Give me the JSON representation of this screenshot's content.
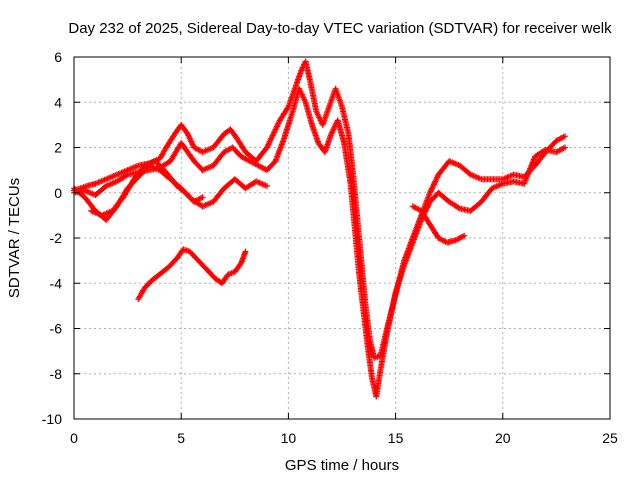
{
  "chart_data": {
    "type": "scatter",
    "title": "Day 232 of 2025, Sidereal Day-to-day VTEC variation (SDTVAR) for receiver welk",
    "xlabel": "GPS time / hours",
    "ylabel": "SDTVAR / TECUs",
    "xlim": [
      0,
      25
    ],
    "ylim": [
      -10,
      6
    ],
    "xticks": [
      "0",
      "5",
      "10",
      "15",
      "20",
      "25"
    ],
    "yticks": [
      "6",
      "4",
      "2",
      "0",
      "-2",
      "-4",
      "-6",
      "-8",
      "-10"
    ],
    "grid": true,
    "marker": "plus",
    "color": "#ff0000",
    "series": [
      {
        "points": [
          [
            0.0,
            0.1
          ],
          [
            0.3,
            0.2
          ],
          [
            0.6,
            0.3
          ],
          [
            1.0,
            0.4
          ],
          [
            1.5,
            0.6
          ],
          [
            2.0,
            0.8
          ],
          [
            2.5,
            1.0
          ],
          [
            3.0,
            1.2
          ],
          [
            3.5,
            1.3
          ],
          [
            4.0,
            1.5
          ],
          [
            4.3,
            2.0
          ],
          [
            4.7,
            2.6
          ],
          [
            5.0,
            3.0
          ],
          [
            5.3,
            2.6
          ],
          [
            5.6,
            2.0
          ],
          [
            6.0,
            1.8
          ],
          [
            6.5,
            2.0
          ],
          [
            7.0,
            2.6
          ],
          [
            7.3,
            2.8
          ],
          [
            7.6,
            2.4
          ],
          [
            8.0,
            1.8
          ],
          [
            8.5,
            1.4
          ],
          [
            9.0,
            2.0
          ],
          [
            9.3,
            2.6
          ],
          [
            9.6,
            3.2
          ],
          [
            10.0,
            3.8
          ],
          [
            10.3,
            4.6
          ],
          [
            10.6,
            5.4
          ],
          [
            10.8,
            5.8
          ],
          [
            11.0,
            5.0
          ],
          [
            11.3,
            3.6
          ],
          [
            11.6,
            3.0
          ],
          [
            11.9,
            3.8
          ],
          [
            12.2,
            4.6
          ],
          [
            12.5,
            3.8
          ],
          [
            12.8,
            2.6
          ],
          [
            13.0,
            1.0
          ],
          [
            13.2,
            -1.0
          ],
          [
            13.4,
            -3.0
          ],
          [
            13.6,
            -5.0
          ],
          [
            13.8,
            -6.5
          ],
          [
            14.0,
            -7.3
          ],
          [
            14.3,
            -7.2
          ],
          [
            14.6,
            -6.0
          ],
          [
            15.0,
            -4.5
          ],
          [
            15.4,
            -3.0
          ],
          [
            15.8,
            -2.0
          ],
          [
            16.2,
            -1.0
          ],
          [
            16.6,
            0.0
          ],
          [
            17.0,
            0.8
          ],
          [
            17.5,
            1.4
          ],
          [
            18.0,
            1.2
          ],
          [
            18.5,
            0.8
          ],
          [
            19.0,
            0.6
          ],
          [
            19.5,
            0.6
          ],
          [
            20.0,
            0.6
          ],
          [
            20.5,
            0.8
          ],
          [
            21.0,
            0.7
          ],
          [
            21.5,
            1.2
          ],
          [
            22.0,
            1.8
          ],
          [
            22.5,
            2.3
          ],
          [
            22.9,
            2.5
          ]
        ]
      },
      {
        "points": [
          [
            0.0,
            0.0
          ],
          [
            0.5,
            0.1
          ],
          [
            1.0,
            -0.1
          ],
          [
            1.5,
            0.3
          ],
          [
            2.0,
            0.5
          ],
          [
            2.5,
            0.8
          ],
          [
            3.0,
            0.9
          ],
          [
            3.5,
            1.0
          ],
          [
            4.0,
            1.1
          ],
          [
            4.5,
            1.4
          ],
          [
            5.0,
            2.2
          ],
          [
            5.3,
            1.8
          ],
          [
            5.6,
            1.4
          ],
          [
            6.0,
            1.0
          ],
          [
            6.5,
            1.2
          ],
          [
            7.0,
            1.8
          ],
          [
            7.4,
            2.0
          ],
          [
            7.8,
            1.6
          ],
          [
            8.2,
            1.4
          ],
          [
            8.6,
            1.2
          ],
          [
            9.0,
            1.0
          ],
          [
            9.4,
            1.4
          ],
          [
            9.8,
            2.4
          ],
          [
            10.2,
            3.6
          ],
          [
            10.5,
            4.6
          ],
          [
            10.8,
            4.0
          ],
          [
            11.1,
            3.0
          ],
          [
            11.4,
            2.2
          ],
          [
            11.7,
            1.8
          ],
          [
            12.0,
            2.6
          ],
          [
            12.3,
            3.2
          ],
          [
            12.6,
            2.2
          ],
          [
            12.9,
            0.4
          ],
          [
            13.1,
            -1.6
          ],
          [
            13.3,
            -3.6
          ],
          [
            13.5,
            -5.2
          ],
          [
            13.7,
            -6.8
          ],
          [
            13.9,
            -8.2
          ],
          [
            14.1,
            -9.0
          ],
          [
            14.3,
            -7.8
          ],
          [
            14.6,
            -6.2
          ],
          [
            15.0,
            -4.4
          ],
          [
            15.4,
            -3.2
          ],
          [
            15.8,
            -2.2
          ],
          [
            16.2,
            -1.2
          ],
          [
            16.6,
            -0.4
          ],
          [
            17.0,
            0.0
          ],
          [
            17.5,
            -0.4
          ],
          [
            18.0,
            -0.7
          ],
          [
            18.5,
            -0.8
          ],
          [
            19.0,
            -0.4
          ],
          [
            19.5,
            0.2
          ],
          [
            20.0,
            0.4
          ],
          [
            20.5,
            0.5
          ],
          [
            21.0,
            0.4
          ],
          [
            21.5,
            1.6
          ],
          [
            22.0,
            1.9
          ],
          [
            22.5,
            1.8
          ],
          [
            22.9,
            2.0
          ]
        ]
      },
      {
        "points": [
          [
            0.0,
            0.2
          ],
          [
            0.5,
            -0.2
          ],
          [
            1.0,
            -0.8
          ],
          [
            1.5,
            -1.2
          ],
          [
            2.0,
            -0.6
          ],
          [
            2.5,
            0.2
          ],
          [
            3.0,
            0.7
          ],
          [
            3.5,
            1.2
          ],
          [
            4.0,
            1.0
          ],
          [
            4.5,
            0.6
          ],
          [
            5.0,
            0.2
          ],
          [
            5.5,
            -0.3
          ],
          [
            6.0,
            -0.6
          ],
          [
            6.5,
            -0.4
          ],
          [
            7.0,
            0.2
          ],
          [
            7.5,
            0.6
          ],
          [
            8.0,
            0.2
          ],
          [
            8.5,
            0.5
          ],
          [
            9.0,
            0.3
          ]
        ]
      },
      {
        "points": [
          [
            0.8,
            -0.8
          ],
          [
            1.3,
            -1.0
          ],
          [
            1.8,
            -0.8
          ],
          [
            2.3,
            -0.2
          ],
          [
            2.8,
            0.6
          ],
          [
            3.3,
            1.2
          ],
          [
            3.8,
            1.4
          ],
          [
            4.3,
            0.9
          ],
          [
            4.8,
            0.3
          ],
          [
            5.2,
            0.0
          ],
          [
            5.6,
            -0.4
          ],
          [
            6.0,
            -0.2
          ]
        ]
      },
      {
        "points": [
          [
            3.0,
            -4.7
          ],
          [
            3.3,
            -4.2
          ],
          [
            3.6,
            -3.9
          ],
          [
            4.0,
            -3.6
          ],
          [
            4.4,
            -3.3
          ],
          [
            4.8,
            -2.9
          ],
          [
            5.1,
            -2.5
          ],
          [
            5.4,
            -2.6
          ],
          [
            5.8,
            -3.0
          ],
          [
            6.2,
            -3.4
          ],
          [
            6.6,
            -3.8
          ],
          [
            6.9,
            -4.0
          ],
          [
            7.2,
            -3.6
          ],
          [
            7.5,
            -3.5
          ],
          [
            7.8,
            -3.1
          ],
          [
            8.0,
            -2.6
          ]
        ]
      },
      {
        "points": [
          [
            15.8,
            -0.6
          ],
          [
            16.2,
            -0.8
          ],
          [
            16.6,
            -1.4
          ],
          [
            17.0,
            -2.0
          ],
          [
            17.4,
            -2.2
          ],
          [
            17.8,
            -2.1
          ],
          [
            18.2,
            -1.9
          ]
        ]
      }
    ]
  }
}
